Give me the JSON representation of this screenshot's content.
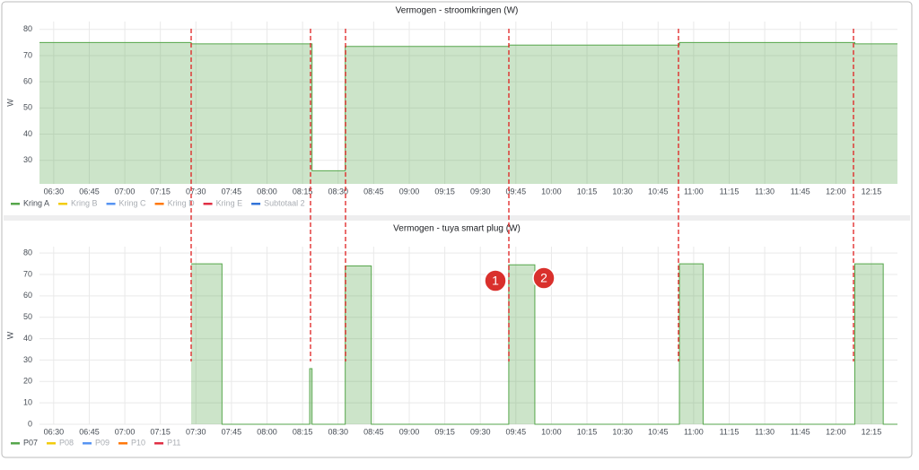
{
  "chart_data": [
    {
      "type": "step-area",
      "title": "Vermogen - stroomkringen (W)",
      "y_label": "W",
      "x": [
        "06:24",
        "07:28",
        "08:19",
        "08:33",
        "09:42",
        "10:54",
        "12:08",
        "12:26"
      ],
      "xlim": [
        "06:24",
        "12:26"
      ],
      "xticks": [
        "06:30",
        "06:45",
        "07:00",
        "07:15",
        "07:30",
        "07:45",
        "08:00",
        "08:15",
        "08:30",
        "08:45",
        "09:00",
        "09:15",
        "09:30",
        "09:45",
        "10:00",
        "10:15",
        "10:30",
        "10:45",
        "11:00",
        "11:15",
        "11:30",
        "11:45",
        "12:00",
        "12:15"
      ],
      "ylim": [
        21,
        83
      ],
      "yticks": [
        30,
        40,
        50,
        60,
        70,
        80
      ],
      "grid": true,
      "series": [
        {
          "name": "Kring A",
          "color": "#56a64b",
          "values": [
            75,
            74.5,
            26,
            73.5,
            74,
            75,
            74.5,
            74.5
          ]
        },
        {
          "name": "Kring B",
          "color": "#f2cc0c"
        },
        {
          "name": "Kring C",
          "color": "#5794f2"
        },
        {
          "name": "Kring D",
          "color": "#ff780a"
        },
        {
          "name": "Kring E",
          "color": "#e02f44"
        },
        {
          "name": "Subtotaal 2",
          "color": "#3274d9"
        }
      ]
    },
    {
      "type": "step-area",
      "title": "Vermogen - tuya smart plug (W)",
      "y_label": "W",
      "x": [
        "07:28",
        "07:41",
        "08:18",
        "08:19",
        "08:33",
        "08:44",
        "09:42",
        "09:53",
        "10:54",
        "11:04",
        "12:08",
        "12:20",
        "12:26"
      ],
      "xlim": [
        "06:24",
        "12:26"
      ],
      "xticks": [
        "06:30",
        "06:45",
        "07:00",
        "07:15",
        "07:30",
        "07:45",
        "08:00",
        "08:15",
        "08:30",
        "08:45",
        "09:00",
        "09:15",
        "09:30",
        "09:45",
        "10:00",
        "10:15",
        "10:30",
        "10:45",
        "11:00",
        "11:15",
        "11:30",
        "11:45",
        "12:00",
        "12:15"
      ],
      "ylim": [
        0,
        83
      ],
      "yticks": [
        0,
        10,
        20,
        30,
        40,
        50,
        60,
        70,
        80
      ],
      "grid": true,
      "series": [
        {
          "name": "P07",
          "color": "#56a64b",
          "values": [
            75,
            0,
            26,
            0,
            74,
            0,
            74.5,
            0,
            75,
            0,
            75,
            0,
            0
          ]
        },
        {
          "name": "P08",
          "color": "#f2cc0c"
        },
        {
          "name": "P09",
          "color": "#5794f2"
        },
        {
          "name": "P10",
          "color": "#ff780a"
        },
        {
          "name": "P11",
          "color": "#e02f44"
        }
      ]
    }
  ],
  "annotations": [
    "1",
    "2"
  ]
}
